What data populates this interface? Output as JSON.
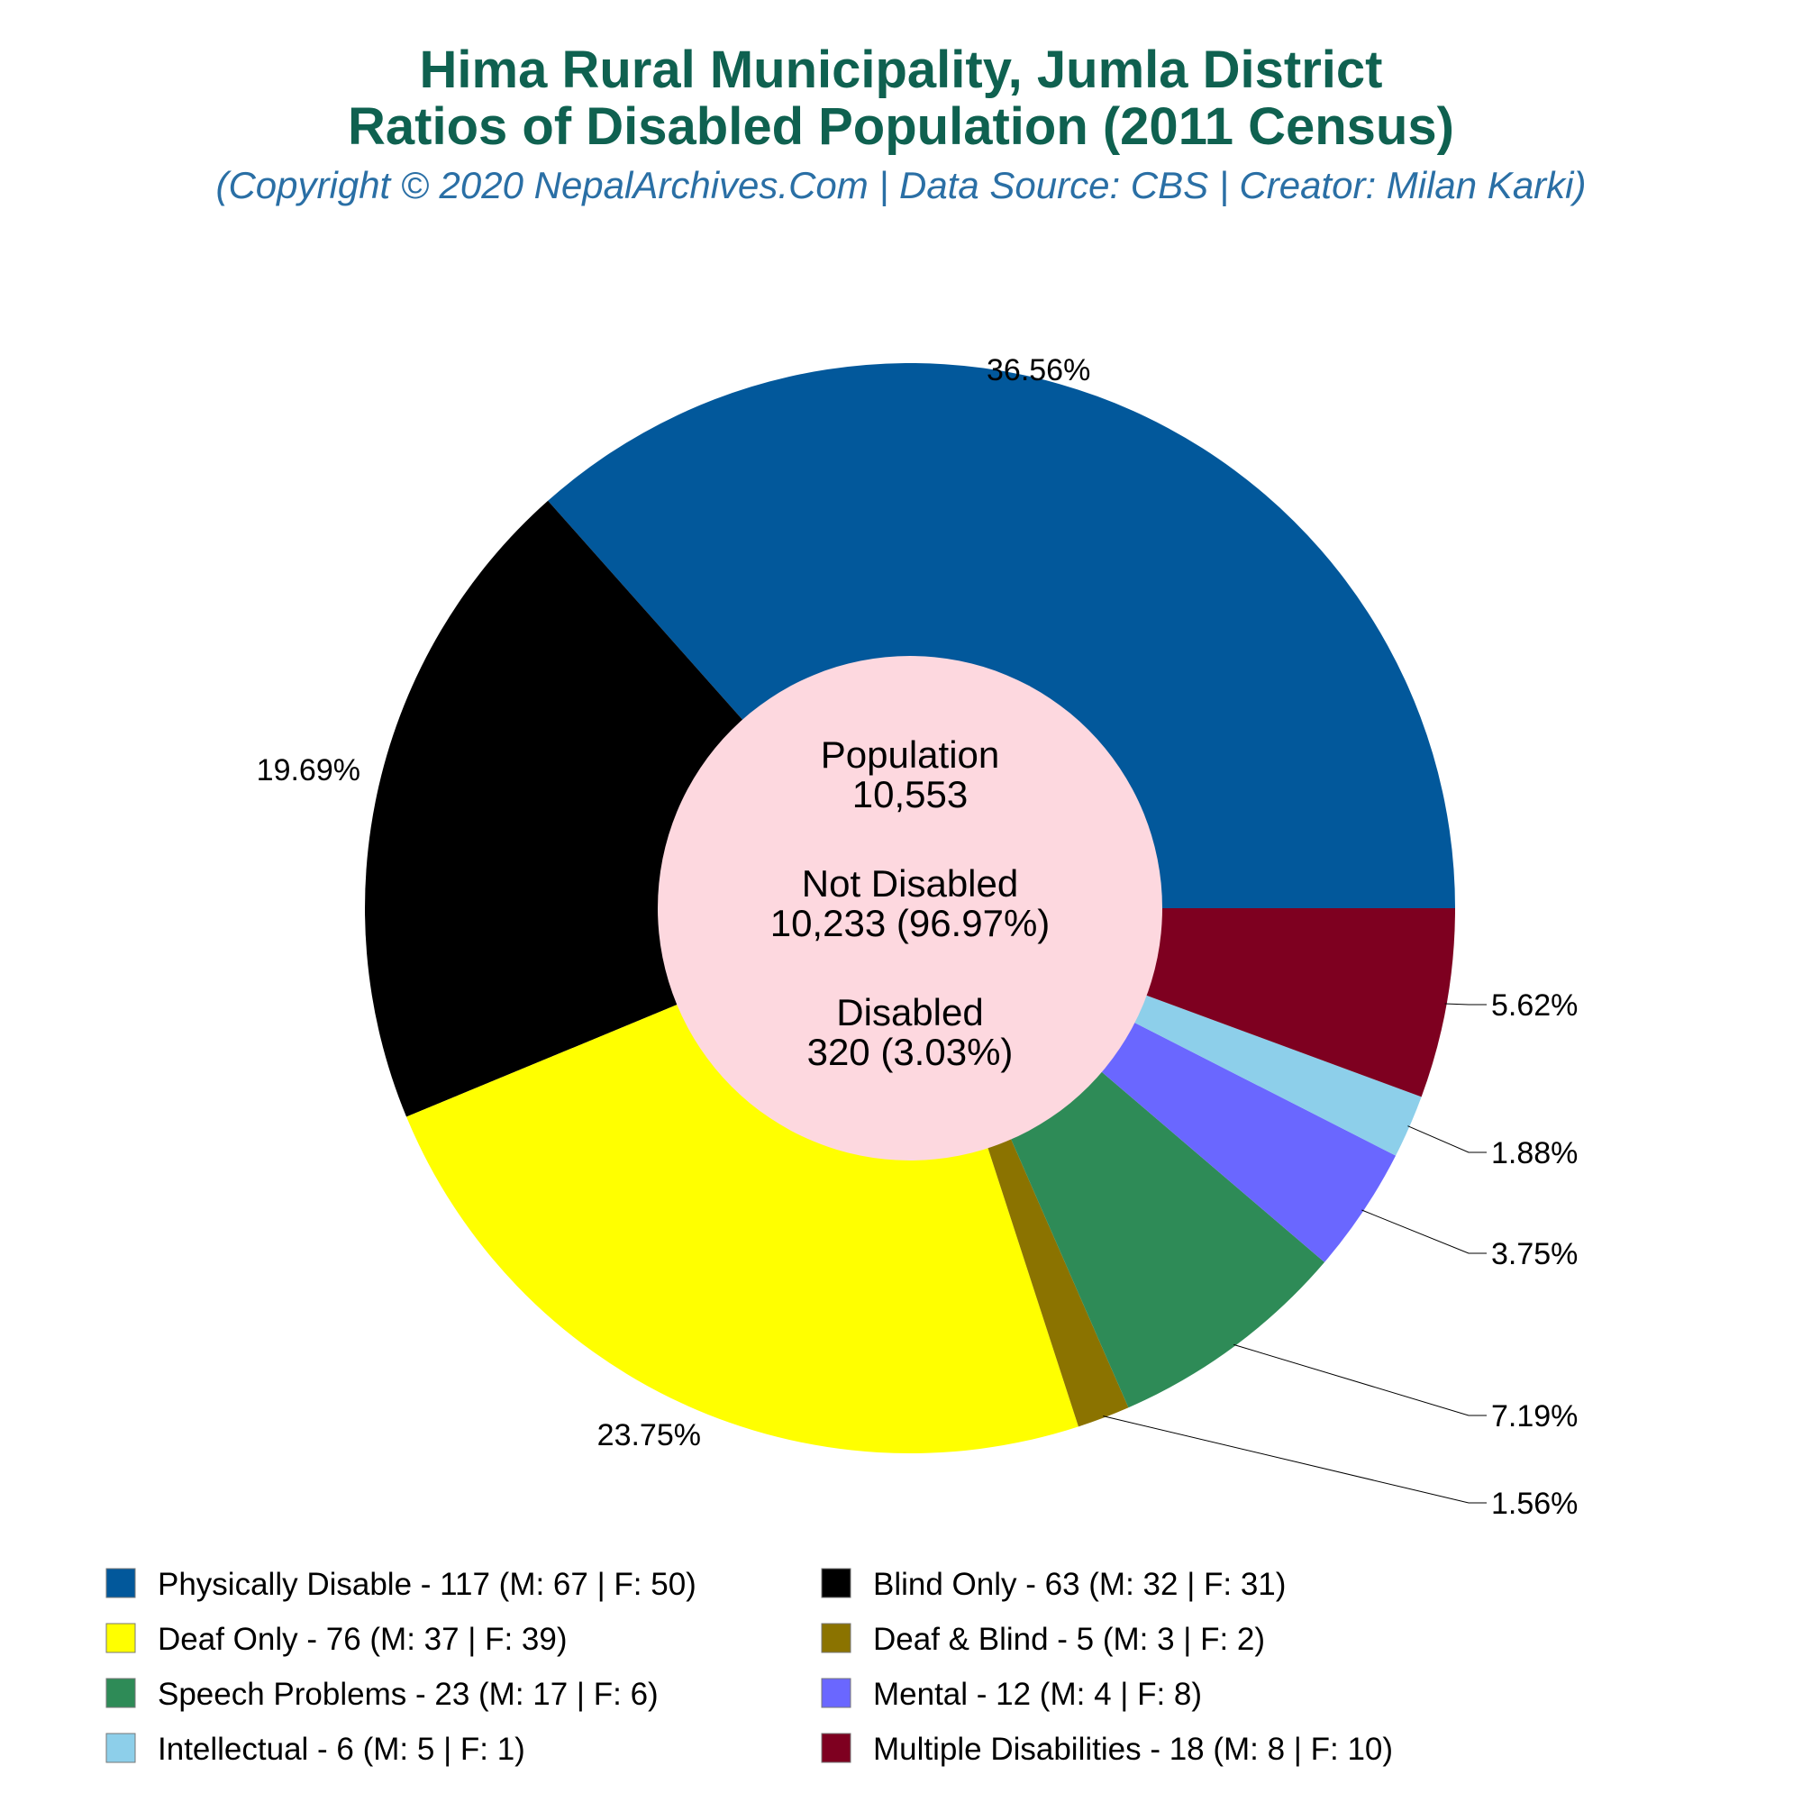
{
  "chart_data": {
    "type": "pie",
    "title": "Hima Rural Municipality, Jumla District",
    "title_line2": "Ratios of Disabled Population (2011 Census)",
    "subtitle": "(Copyright © 2020 NepalArchives.Com | Data Source: CBS | Creator: Milan Karki)",
    "center": {
      "population_label": "Population",
      "population_value": "10,553",
      "not_disabled_label": "Not Disabled",
      "not_disabled_value": "10,233 (96.97%)",
      "disabled_label": "Disabled",
      "disabled_value": "320 (3.03%)"
    },
    "slices": [
      {
        "name": "Physically Disable",
        "value": 117,
        "pct_label": "36.56%",
        "color": "#02589b",
        "legend": "Physically Disable - 117 (M: 67 | F: 50)"
      },
      {
        "name": "Blind Only",
        "value": 63,
        "pct_label": "19.69%",
        "color": "#000000",
        "legend": "Blind Only - 63 (M: 32 | F: 31)"
      },
      {
        "name": "Deaf Only",
        "value": 76,
        "pct_label": "23.75%",
        "color": "#ffff00",
        "legend": "Deaf Only - 76 (M: 37 | F: 39)"
      },
      {
        "name": "Deaf & Blind",
        "value": 5,
        "pct_label": "1.56%",
        "color": "#8b7300",
        "legend": "Deaf & Blind - 5 (M: 3 | F: 2)"
      },
      {
        "name": "Speech Problems",
        "value": 23,
        "pct_label": "7.19%",
        "color": "#2e8b57",
        "legend": "Speech Problems - 23 (M: 17 | F: 6)"
      },
      {
        "name": "Mental",
        "value": 12,
        "pct_label": "3.75%",
        "color": "#6a67ff",
        "legend": "Mental - 12 (M: 4 | F: 8)"
      },
      {
        "name": "Intellectual",
        "value": 6,
        "pct_label": "1.88%",
        "color": "#8dcfea",
        "legend": "Intellectual - 6 (M: 5 | F: 1)"
      },
      {
        "name": "Multiple Disabilities",
        "value": 18,
        "pct_label": "5.62%",
        "color": "#7e0020",
        "legend": "Multiple Disabilities - 18 (M: 8 | F: 10)"
      }
    ],
    "legend_placement": "bottom",
    "center_color": "#fdd8df"
  }
}
